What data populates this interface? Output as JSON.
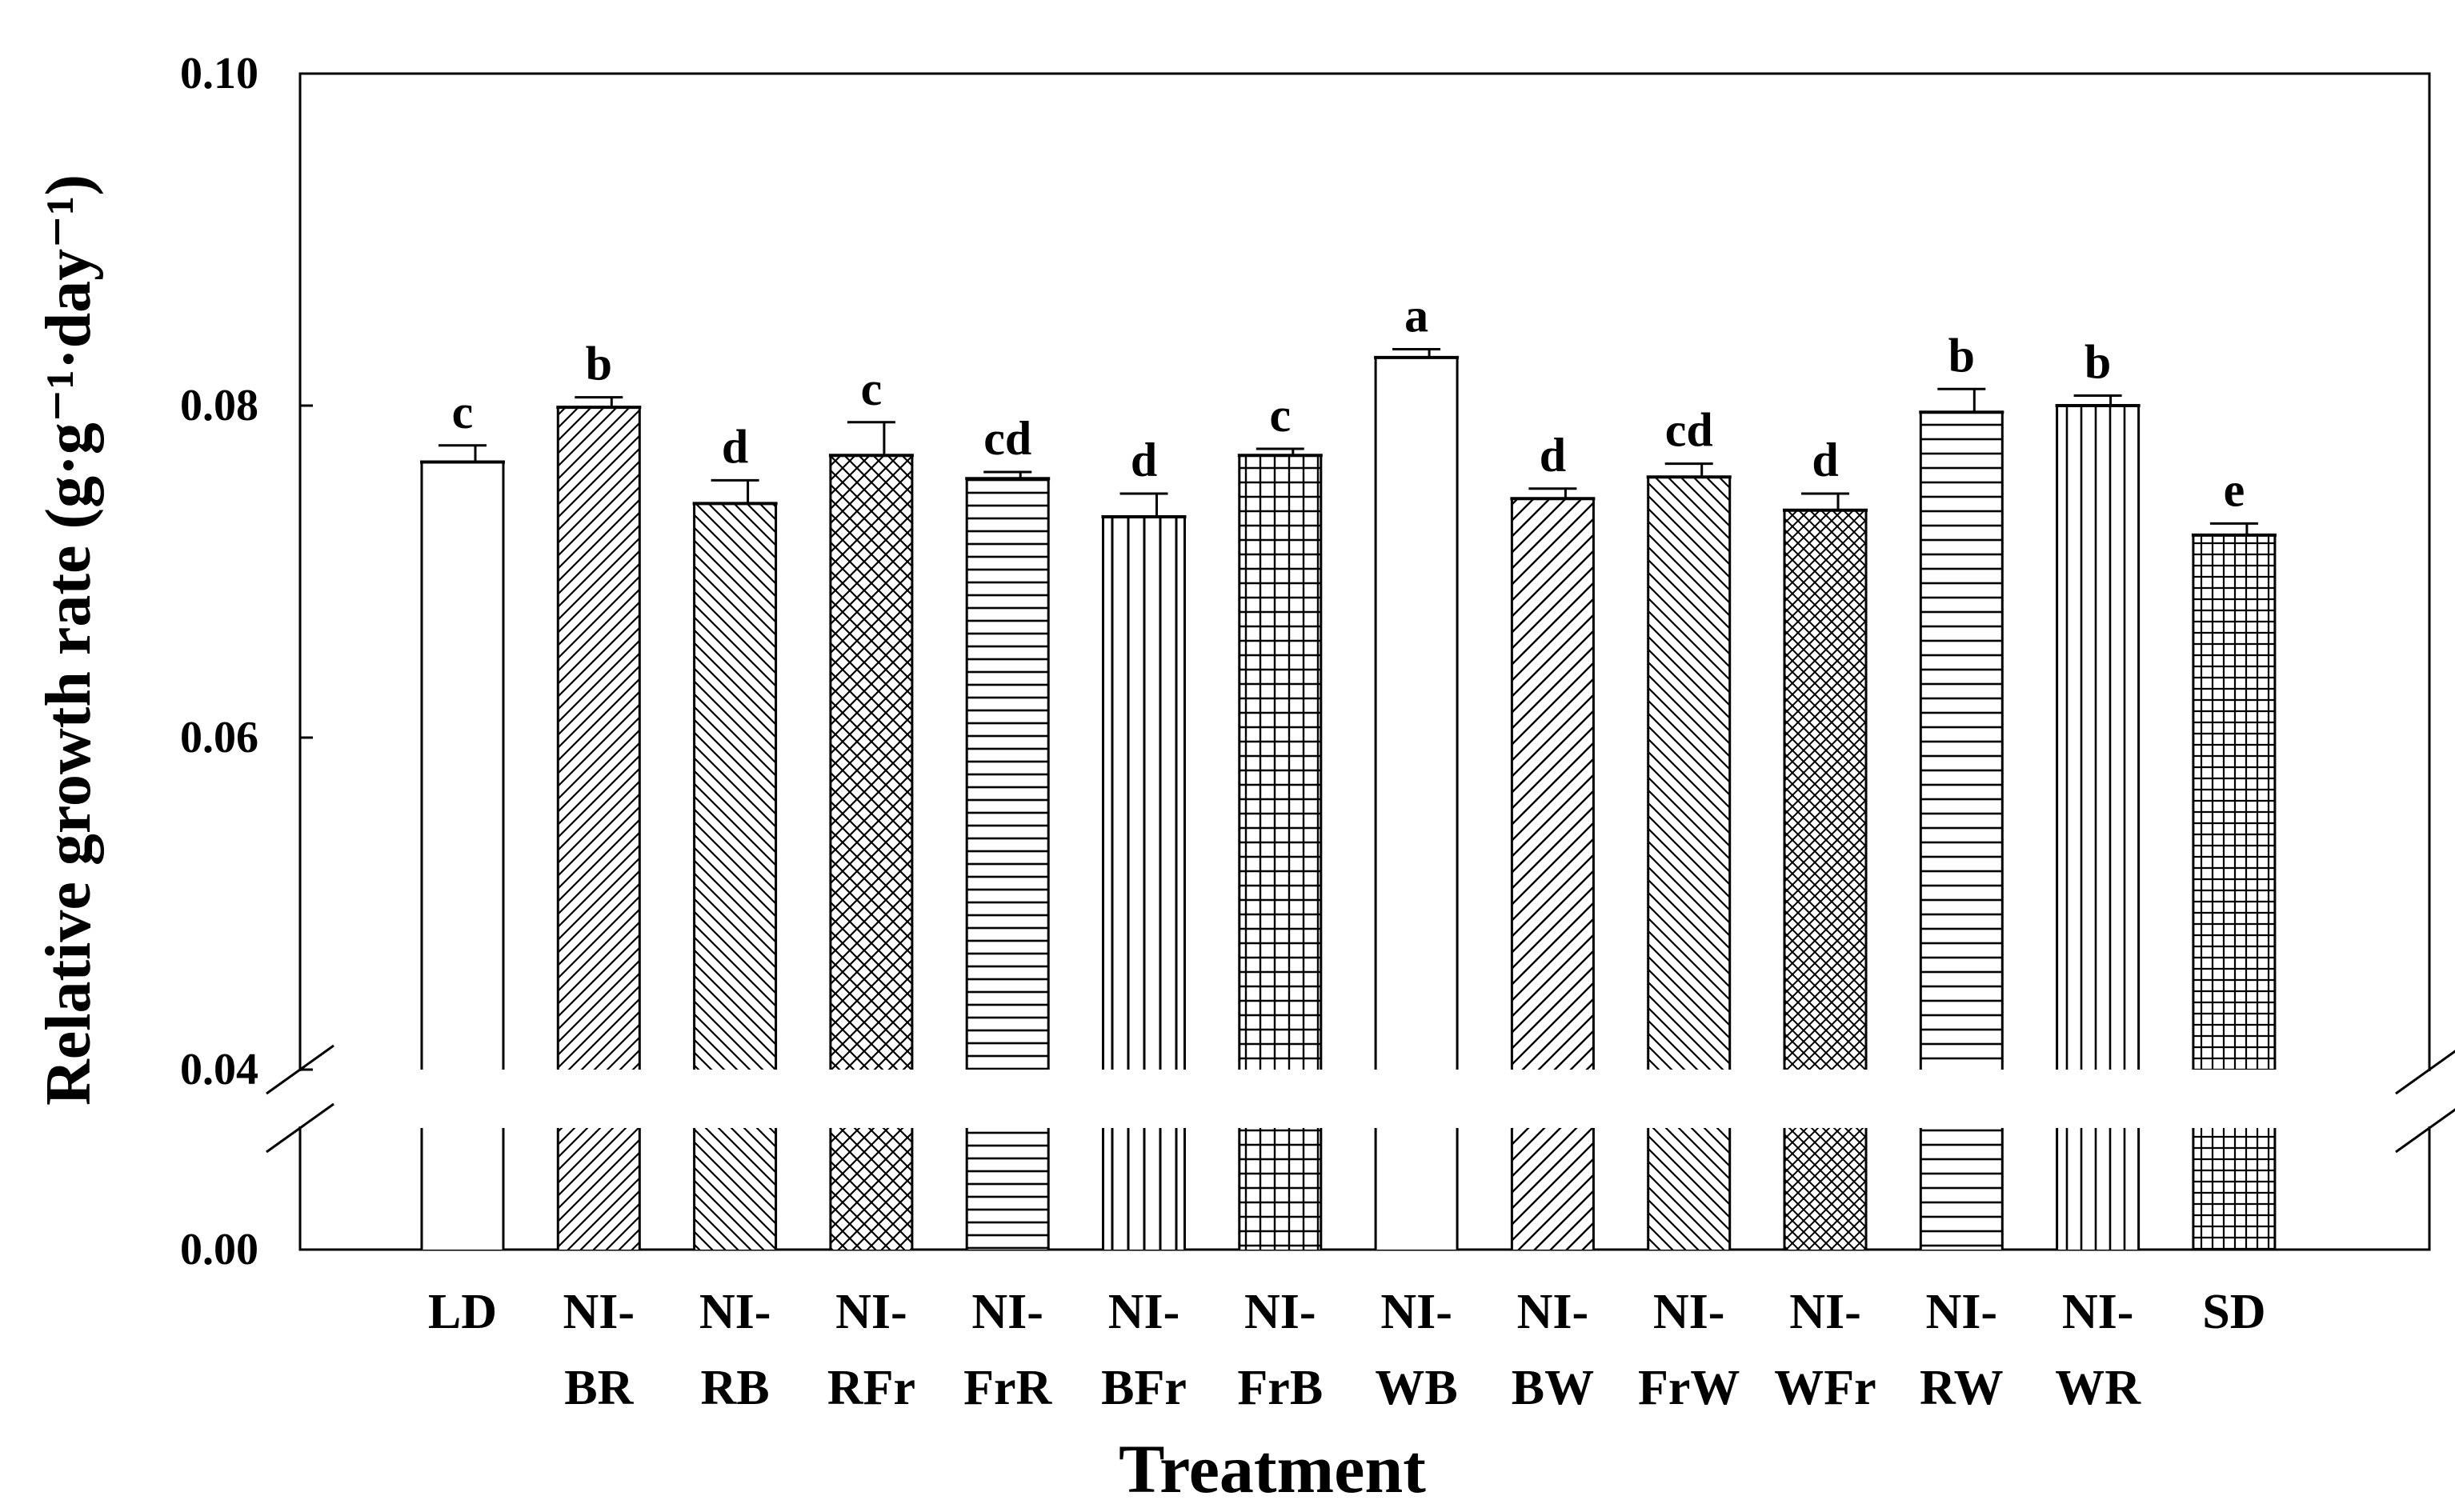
{
  "chart_data": {
    "type": "bar",
    "title": "",
    "xlabel": "Treatment",
    "ylabel": "Relative growth rate (g·g⁻¹·day⁻¹)",
    "ylim": [
      0,
      0.1
    ],
    "axis_break": [
      0.0,
      0.04
    ],
    "yticks": [
      "0.00",
      "0.04",
      "0.06",
      "0.08",
      "0.10"
    ],
    "grid": false,
    "categories": [
      {
        "label": [
          "LD"
        ],
        "value": 0.0766,
        "error": 0.001,
        "letter": "c",
        "pattern": "none"
      },
      {
        "label": [
          "NI-",
          "BR"
        ],
        "value": 0.0799,
        "error": 0.0006,
        "letter": "b",
        "pattern": "diag-right-dense"
      },
      {
        "label": [
          "NI-",
          "RB"
        ],
        "value": 0.0741,
        "error": 0.0014,
        "letter": "d",
        "pattern": "diag-left"
      },
      {
        "label": [
          "NI-",
          "RFr"
        ],
        "value": 0.077,
        "error": 0.002,
        "letter": "c",
        "pattern": "crosshatch"
      },
      {
        "label": [
          "NI-",
          "FrR"
        ],
        "value": 0.0756,
        "error": 0.0004,
        "letter": "cd",
        "pattern": "horizontal"
      },
      {
        "label": [
          "NI-",
          "BFr"
        ],
        "value": 0.0733,
        "error": 0.0014,
        "letter": "d",
        "pattern": "vertical-wide"
      },
      {
        "label": [
          "NI-",
          "FrB"
        ],
        "value": 0.077,
        "error": 0.0004,
        "letter": "c",
        "pattern": "grid"
      },
      {
        "label": [
          "NI-",
          "WB"
        ],
        "value": 0.0829,
        "error": 0.0005,
        "letter": "a",
        "pattern": "none"
      },
      {
        "label": [
          "NI-",
          "BW"
        ],
        "value": 0.0744,
        "error": 0.0006,
        "letter": "d",
        "pattern": "diag-right"
      },
      {
        "label": [
          "NI-",
          "FrW"
        ],
        "value": 0.0757,
        "error": 0.0008,
        "letter": "cd",
        "pattern": "diag-left"
      },
      {
        "label": [
          "NI-",
          "WFr"
        ],
        "value": 0.0737,
        "error": 0.001,
        "letter": "d",
        "pattern": "crosshatch-dense"
      },
      {
        "label": [
          "NI-",
          "RW"
        ],
        "value": 0.0796,
        "error": 0.0014,
        "letter": "b",
        "pattern": "horizontal-wide"
      },
      {
        "label": [
          "NI-",
          "WR"
        ],
        "value": 0.08,
        "error": 0.0006,
        "letter": "b",
        "pattern": "vertical"
      },
      {
        "label": [
          "SD"
        ],
        "value": 0.0722,
        "error": 0.0007,
        "letter": "e",
        "pattern": "grid-dense"
      }
    ]
  }
}
